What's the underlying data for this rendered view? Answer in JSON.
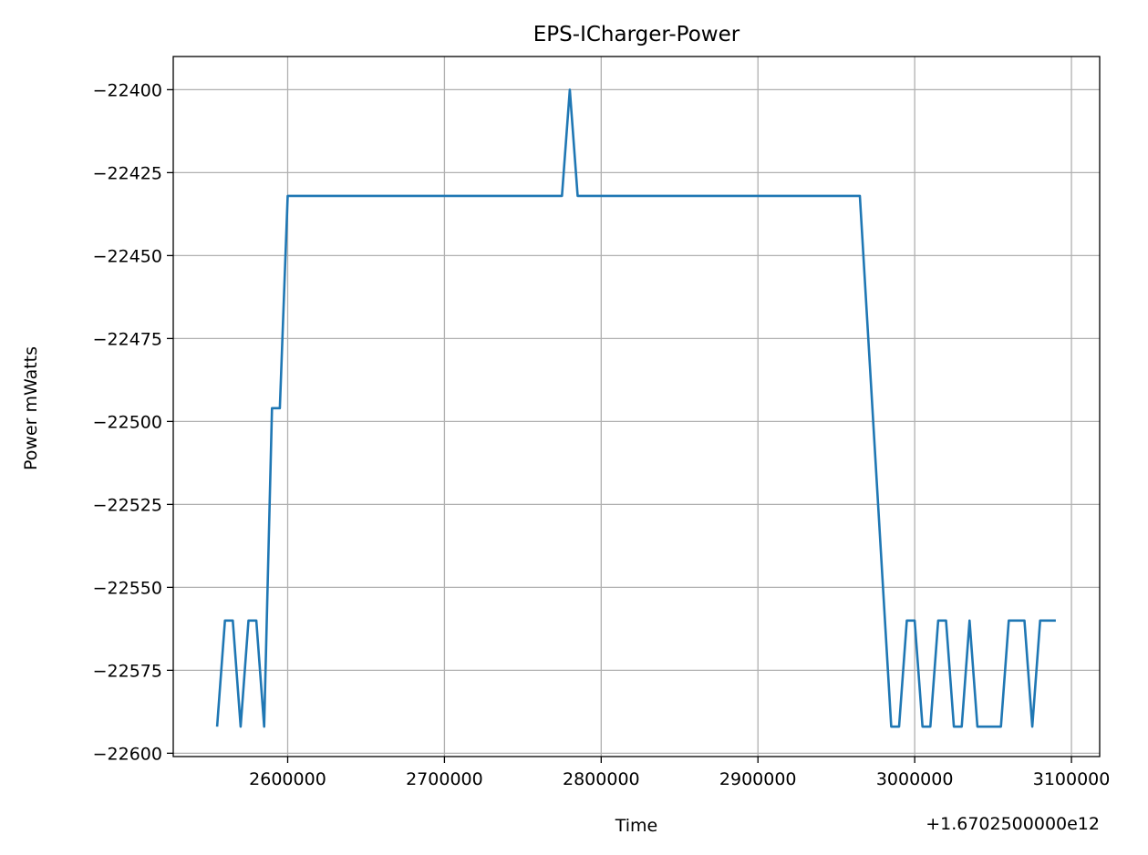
{
  "chart_data": {
    "type": "line",
    "title": "EPS-ICharger-Power",
    "xlabel": "Time",
    "ylabel": "Power mWatts",
    "x_offset_label": "+1.6702500000e12",
    "grid": true,
    "xlim": [
      2527000,
      3118000
    ],
    "ylim": [
      -22601,
      -22390
    ],
    "xticks": [
      2600000,
      2700000,
      2800000,
      2900000,
      3000000,
      3100000
    ],
    "xtick_labels": [
      "2600000",
      "2700000",
      "2800000",
      "2900000",
      "3000000",
      "3100000"
    ],
    "yticks": [
      -22400,
      -22425,
      -22450,
      -22475,
      -22500,
      -22525,
      -22550,
      -22575,
      -22600
    ],
    "ytick_labels": [
      "−22400",
      "−22425",
      "−22450",
      "−22475",
      "−22500",
      "−22525",
      "−22550",
      "−22575",
      "−22600"
    ],
    "series": [
      {
        "color": "#1f77b4",
        "x": [
          2555000,
          2560000,
          2565000,
          2570000,
          2575000,
          2580000,
          2585000,
          2590000,
          2595000,
          2600000,
          2610000,
          2650000,
          2700000,
          2750000,
          2775000,
          2780000,
          2785000,
          2800000,
          2850000,
          2900000,
          2950000,
          2965000,
          2985000,
          2990000,
          2995000,
          3000000,
          3005000,
          3010000,
          3015000,
          3020000,
          3025000,
          3030000,
          3035000,
          3040000,
          3045000,
          3050000,
          3055000,
          3060000,
          3065000,
          3070000,
          3075000,
          3080000,
          3085000,
          3090000
        ],
        "y": [
          -22592,
          -22560,
          -22560,
          -22592,
          -22560,
          -22560,
          -22592,
          -22496,
          -22496,
          -22432,
          -22432,
          -22432,
          -22432,
          -22432,
          -22432,
          -22400,
          -22432,
          -22432,
          -22432,
          -22432,
          -22432,
          -22432,
          -22592,
          -22592,
          -22560,
          -22560,
          -22592,
          -22592,
          -22560,
          -22560,
          -22592,
          -22592,
          -22560,
          -22592,
          -22592,
          -22592,
          -22592,
          -22560,
          -22560,
          -22560,
          -22592,
          -22560,
          -22560,
          -22560
        ]
      }
    ]
  }
}
